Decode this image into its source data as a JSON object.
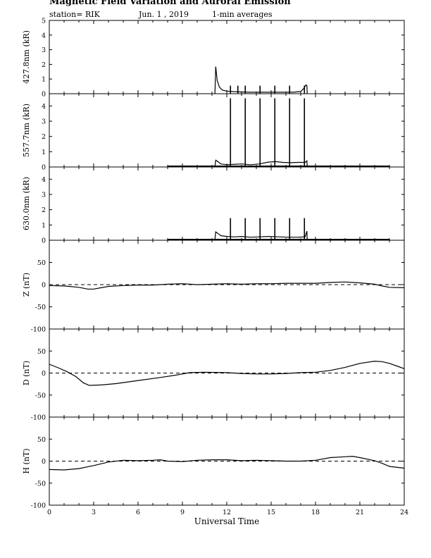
{
  "header": {
    "title": "Magnetic Field Variation and Auroral Emission",
    "station": "station= RIK",
    "date": "Jun. 1 , 2019",
    "averaging": "1-min averages"
  },
  "chart_data": [
    {
      "type": "line",
      "name": "427.8nm",
      "ylabel": "427.8nm (kR)",
      "ylim": [
        0,
        5
      ],
      "yticks": [
        0,
        1,
        2,
        3,
        4,
        5
      ],
      "xlim": [
        0,
        24
      ],
      "baseline": null,
      "spikes": [
        12.25,
        12.75,
        13.25,
        14.25,
        15.25,
        16.25,
        17.25
      ],
      "spike_height": 0.55,
      "points": [
        [
          11.2,
          0.02
        ],
        [
          11.25,
          1.85
        ],
        [
          11.35,
          0.9
        ],
        [
          11.5,
          0.45
        ],
        [
          11.7,
          0.25
        ],
        [
          12.0,
          0.18
        ],
        [
          12.5,
          0.14
        ],
        [
          13.0,
          0.12
        ],
        [
          13.5,
          0.1
        ],
        [
          14.5,
          0.1
        ],
        [
          15.5,
          0.1
        ],
        [
          16.5,
          0.1
        ],
        [
          17.0,
          0.15
        ],
        [
          17.2,
          0.35
        ],
        [
          17.35,
          0.6
        ],
        [
          17.42,
          0.55
        ],
        [
          17.44,
          0.02
        ]
      ]
    },
    {
      "type": "line",
      "name": "557.7nm",
      "ylabel": "557.7nm (kR)",
      "ylim": [
        0,
        4.8
      ],
      "yticks": [
        0,
        1,
        2,
        3,
        4
      ],
      "xlim": [
        0,
        24
      ],
      "baseline": [
        8,
        23
      ],
      "spikes": [
        12.25,
        13.25,
        14.25,
        15.25,
        16.25,
        17.25
      ],
      "spike_height": 4.5,
      "points": [
        [
          11.2,
          0.05
        ],
        [
          11.25,
          0.45
        ],
        [
          11.4,
          0.35
        ],
        [
          11.6,
          0.2
        ],
        [
          12.0,
          0.15
        ],
        [
          12.6,
          0.18
        ],
        [
          13.0,
          0.2
        ],
        [
          13.6,
          0.15
        ],
        [
          14.2,
          0.2
        ],
        [
          14.8,
          0.32
        ],
        [
          15.3,
          0.35
        ],
        [
          15.8,
          0.3
        ],
        [
          16.3,
          0.28
        ],
        [
          16.8,
          0.3
        ],
        [
          17.3,
          0.3
        ],
        [
          17.42,
          0.4
        ],
        [
          17.44,
          0.05
        ]
      ]
    },
    {
      "type": "line",
      "name": "630.0nm",
      "ylabel": "630.0nm (kR)",
      "ylim": [
        0,
        4.8
      ],
      "yticks": [
        0,
        1,
        2,
        3,
        4
      ],
      "xlim": [
        0,
        24
      ],
      "baseline": [
        8,
        23
      ],
      "spikes": [
        12.25,
        13.25,
        14.25,
        15.25,
        16.25,
        17.25
      ],
      "spike_height": 1.45,
      "points": [
        [
          11.2,
          0.05
        ],
        [
          11.25,
          0.55
        ],
        [
          11.4,
          0.45
        ],
        [
          11.6,
          0.3
        ],
        [
          12.0,
          0.25
        ],
        [
          12.5,
          0.22
        ],
        [
          13.0,
          0.25
        ],
        [
          13.6,
          0.2
        ],
        [
          14.2,
          0.22
        ],
        [
          14.8,
          0.25
        ],
        [
          15.5,
          0.22
        ],
        [
          16.2,
          0.2
        ],
        [
          16.8,
          0.2
        ],
        [
          17.3,
          0.22
        ],
        [
          17.42,
          0.6
        ],
        [
          17.44,
          0.05
        ]
      ]
    },
    {
      "type": "line",
      "name": "Z",
      "ylabel": "Z (nT)",
      "ylim": [
        -100,
        100
      ],
      "yticks": [
        -100,
        -50,
        0,
        50
      ],
      "xlim": [
        0,
        24
      ],
      "zero_line": true,
      "points": [
        [
          0,
          -2
        ],
        [
          1,
          -3
        ],
        [
          2,
          -6
        ],
        [
          2.6,
          -10
        ],
        [
          3,
          -10
        ],
        [
          3.5,
          -7
        ],
        [
          4,
          -4
        ],
        [
          5,
          -2
        ],
        [
          6,
          -1
        ],
        [
          7,
          -1
        ],
        [
          8,
          1
        ],
        [
          9,
          2
        ],
        [
          10,
          0
        ],
        [
          11,
          1
        ],
        [
          12,
          2
        ],
        [
          13,
          1
        ],
        [
          14,
          2
        ],
        [
          15,
          2
        ],
        [
          16,
          3
        ],
        [
          17,
          3
        ],
        [
          18,
          3
        ],
        [
          19,
          5
        ],
        [
          20,
          6
        ],
        [
          21,
          4
        ],
        [
          22,
          1
        ],
        [
          22.5,
          -3
        ],
        [
          23,
          -6
        ],
        [
          24,
          -7
        ]
      ]
    },
    {
      "type": "line",
      "name": "D",
      "ylabel": "D (nT)",
      "ylim": [
        -100,
        100
      ],
      "yticks": [
        -100,
        -50,
        0,
        50
      ],
      "xlim": [
        0,
        24
      ],
      "zero_line": true,
      "points": [
        [
          0,
          20
        ],
        [
          0.6,
          12
        ],
        [
          1.2,
          3
        ],
        [
          1.8,
          -8
        ],
        [
          2.3,
          -22
        ],
        [
          2.7,
          -28
        ],
        [
          3.5,
          -27
        ],
        [
          4.5,
          -24
        ],
        [
          6,
          -17
        ],
        [
          7.5,
          -10
        ],
        [
          8.5,
          -5
        ],
        [
          9.5,
          1
        ],
        [
          10.5,
          2
        ],
        [
          12,
          1
        ],
        [
          13,
          -1
        ],
        [
          14,
          -2
        ],
        [
          15,
          -2
        ],
        [
          16,
          -1
        ],
        [
          17,
          1
        ],
        [
          18,
          2
        ],
        [
          19,
          6
        ],
        [
          20,
          13
        ],
        [
          21,
          22
        ],
        [
          22,
          27
        ],
        [
          22.5,
          26
        ],
        [
          23,
          22
        ],
        [
          23.5,
          16
        ],
        [
          24,
          10
        ]
      ]
    },
    {
      "type": "line",
      "name": "H",
      "ylabel": "H (nT)",
      "ylim": [
        -100,
        100
      ],
      "yticks": [
        -100,
        -50,
        0,
        50
      ],
      "xlim": [
        0,
        24
      ],
      "xticks": [
        0,
        3,
        6,
        9,
        12,
        15,
        18,
        21,
        24
      ],
      "xlabel": "Universal Time",
      "zero_line": true,
      "points": [
        [
          0,
          -19
        ],
        [
          1,
          -20
        ],
        [
          2,
          -17
        ],
        [
          3,
          -10
        ],
        [
          4,
          -2
        ],
        [
          5,
          2
        ],
        [
          6,
          1
        ],
        [
          7,
          2
        ],
        [
          7.5,
          3
        ],
        [
          8,
          0
        ],
        [
          9,
          -1
        ],
        [
          10,
          2
        ],
        [
          11,
          3
        ],
        [
          12,
          3
        ],
        [
          13,
          1
        ],
        [
          14,
          2
        ],
        [
          15,
          1
        ],
        [
          16,
          0
        ],
        [
          17,
          0
        ],
        [
          18,
          2
        ],
        [
          19,
          8
        ],
        [
          20,
          10
        ],
        [
          20.5,
          11
        ],
        [
          21,
          8
        ],
        [
          22,
          1
        ],
        [
          22.5,
          -5
        ],
        [
          23,
          -12
        ],
        [
          24,
          -16
        ]
      ]
    }
  ]
}
